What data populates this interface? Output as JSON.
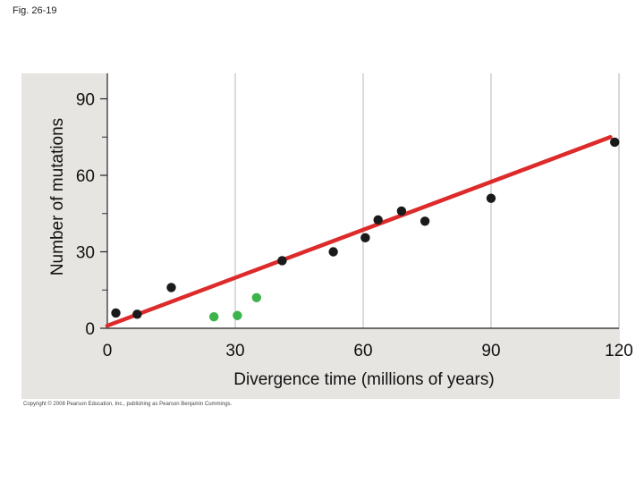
{
  "fig_label": "Fig. 26-19",
  "copyright": "Copyright © 2008 Pearson Education, Inc., publishing as Pearson Benjamin Cummings.",
  "chart_data": {
    "type": "scatter",
    "title": "",
    "xlabel": "Divergence time (millions of years)",
    "ylabel": "Number of mutations",
    "xlim": [
      0,
      120
    ],
    "ylim": [
      0,
      100
    ],
    "x_ticks": [
      0,
      30,
      60,
      90,
      120
    ],
    "y_ticks": [
      0,
      30,
      60,
      90
    ],
    "grid": true,
    "series": [
      {
        "color": "#1a1a1a",
        "points": [
          {
            "x": 2,
            "y": 6
          },
          {
            "x": 7,
            "y": 5.5
          },
          {
            "x": 15,
            "y": 16
          },
          {
            "x": 41,
            "y": 26.5
          },
          {
            "x": 53,
            "y": 30
          },
          {
            "x": 60.5,
            "y": 35.5
          },
          {
            "x": 63.5,
            "y": 42.5
          },
          {
            "x": 69,
            "y": 46
          },
          {
            "x": 74.5,
            "y": 42
          },
          {
            "x": 90,
            "y": 51
          },
          {
            "x": 119,
            "y": 73
          }
        ]
      },
      {
        "color": "#3cb44b",
        "points": [
          {
            "x": 25,
            "y": 4.5
          },
          {
            "x": 30.5,
            "y": 5
          },
          {
            "x": 35,
            "y": 12
          }
        ]
      }
    ],
    "trendline": {
      "x": [
        0,
        118
      ],
      "y": [
        1,
        75
      ],
      "color": "#dd2a2a"
    }
  }
}
